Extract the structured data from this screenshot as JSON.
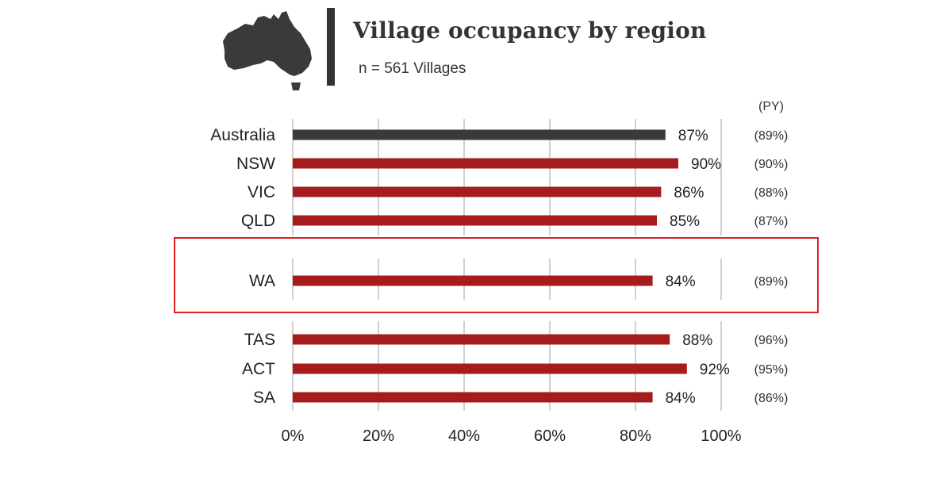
{
  "header": {
    "title": "Village occupancy by region",
    "subtitle": "n = 561 Villages",
    "icon": "australia-map-icon"
  },
  "chart_data": {
    "type": "bar",
    "orientation": "horizontal",
    "title": "Village occupancy by region",
    "subtitle": "n = 561 Villages",
    "categories": [
      "Australia",
      "NSW",
      "VIC",
      "QLD",
      "WA",
      "TAS",
      "ACT",
      "SA"
    ],
    "values": [
      87,
      90,
      86,
      85,
      84,
      88,
      92,
      84
    ],
    "value_labels": [
      "87%",
      "90%",
      "86%",
      "85%",
      "84%",
      "88%",
      "92%",
      "84%"
    ],
    "prior_year_header": "(PY)",
    "prior_year_labels": [
      "(89%)",
      "(90%)",
      "(88%)",
      "(87%)",
      "(89%)",
      "(96%)",
      "(95%)",
      "(86%)"
    ],
    "x_ticks": [
      "0%",
      "20%",
      "40%",
      "60%",
      "80%",
      "100%"
    ],
    "xlim": [
      0,
      100
    ],
    "grid": true,
    "highlighted_category": "WA",
    "colors": {
      "total": "#3a3a3a",
      "region": "#a61c1c",
      "grid": "#d0d0d0",
      "highlight": "#e02020"
    }
  }
}
